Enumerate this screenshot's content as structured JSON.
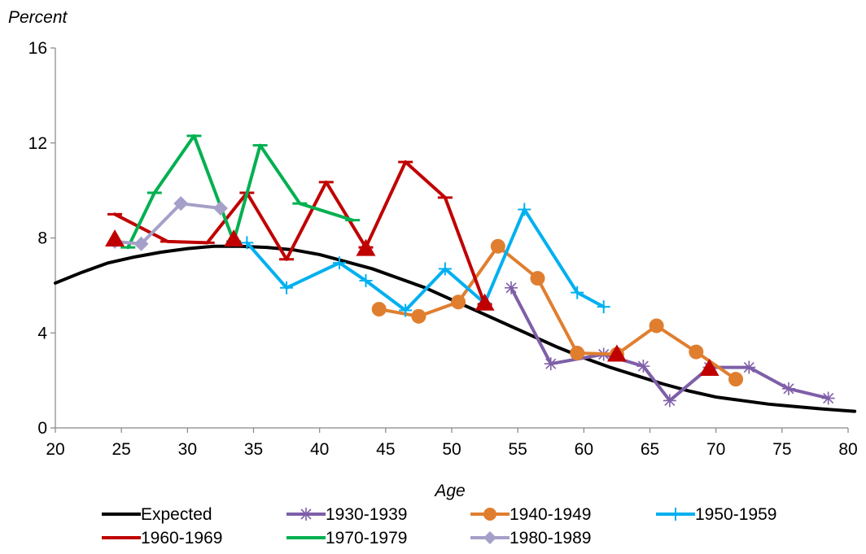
{
  "chart_data": {
    "type": "line",
    "ylabel": "Percent",
    "xlabel": "Age",
    "xlim": [
      20,
      80
    ],
    "ylim": [
      0,
      16
    ],
    "xticks": [
      "20",
      "25",
      "30",
      "35",
      "40",
      "45",
      "50",
      "55",
      "60",
      "65",
      "70",
      "75",
      "80"
    ],
    "yticks": [
      "0",
      "4",
      "8",
      "12",
      "16"
    ],
    "grid": false,
    "legend_position": "bottom",
    "series": [
      {
        "name": "Expected",
        "color": "#000000",
        "marker": "none",
        "x": [
          20,
          22,
          24,
          26,
          28,
          30,
          32,
          34,
          36,
          38,
          40,
          42,
          44,
          46,
          48,
          50,
          52,
          54,
          56,
          58,
          60,
          62,
          64,
          66,
          68,
          70,
          72,
          74,
          76,
          78,
          80.5
        ],
        "y": [
          6.1,
          6.55,
          6.95,
          7.2,
          7.4,
          7.55,
          7.65,
          7.65,
          7.6,
          7.5,
          7.3,
          7.0,
          6.7,
          6.3,
          5.9,
          5.4,
          4.9,
          4.4,
          3.9,
          3.4,
          2.95,
          2.55,
          2.2,
          1.85,
          1.55,
          1.3,
          1.15,
          1.0,
          0.9,
          0.8,
          0.7
        ]
      },
      {
        "name": "1930-1939",
        "color": "#7f5fa8",
        "marker": "star",
        "x": [
          54.5,
          57.5,
          61.5,
          64.5,
          66.5,
          69.5,
          72.5,
          75.5,
          78.5
        ],
        "y": [
          5.9,
          2.7,
          3.1,
          2.6,
          1.15,
          2.55,
          2.55,
          1.65,
          1.25
        ]
      },
      {
        "name": "1940-1949",
        "color": "#e07e2f",
        "marker": "circle",
        "x": [
          44.5,
          47.5,
          50.5,
          53.5,
          56.5,
          59.5,
          62.5,
          65.5,
          68.5,
          71.5
        ],
        "y": [
          5.0,
          4.7,
          5.3,
          7.65,
          6.3,
          3.15,
          3.1,
          4.3,
          3.2,
          2.05
        ]
      },
      {
        "name": "1950-1959",
        "color": "#00b0f0",
        "marker": "plus",
        "x": [
          34.5,
          37.5,
          41.5,
          43.5,
          46.5,
          49.5,
          52.5,
          55.5,
          59.5,
          61.5
        ],
        "y": [
          7.8,
          5.9,
          6.95,
          6.2,
          4.95,
          6.7,
          5.25,
          9.2,
          5.7,
          5.1
        ]
      },
      {
        "name": "1960-1969",
        "color": "#c00000",
        "marker": "triangle",
        "x": [
          24.5,
          28.5,
          31.5,
          34.5,
          37.5,
          40.5,
          43.5,
          46.5,
          49.5,
          52.5
        ],
        "y": [
          9.0,
          7.85,
          7.8,
          9.9,
          7.1,
          10.35,
          7.6,
          11.2,
          9.7,
          5.2
        ],
        "triangles_x": [
          24.5,
          33.5,
          43.5,
          52.5,
          62.5,
          69.5
        ],
        "triangles_y": [
          7.95,
          7.95,
          7.55,
          5.25,
          3.1,
          2.5
        ]
      },
      {
        "name": "1970-1979",
        "color": "#00b050",
        "marker": "dash",
        "x": [
          25.5,
          27.5,
          30.5,
          33.5,
          35.5,
          38.5,
          42.5
        ],
        "y": [
          7.6,
          9.9,
          12.3,
          7.85,
          11.9,
          9.45,
          8.75
        ]
      },
      {
        "name": "1980-1989",
        "color": "#a5a0c8",
        "marker": "diamond",
        "x": [
          24.5,
          26.5,
          29.5,
          32.5
        ],
        "y": [
          7.85,
          7.75,
          9.45,
          9.25
        ]
      }
    ]
  }
}
